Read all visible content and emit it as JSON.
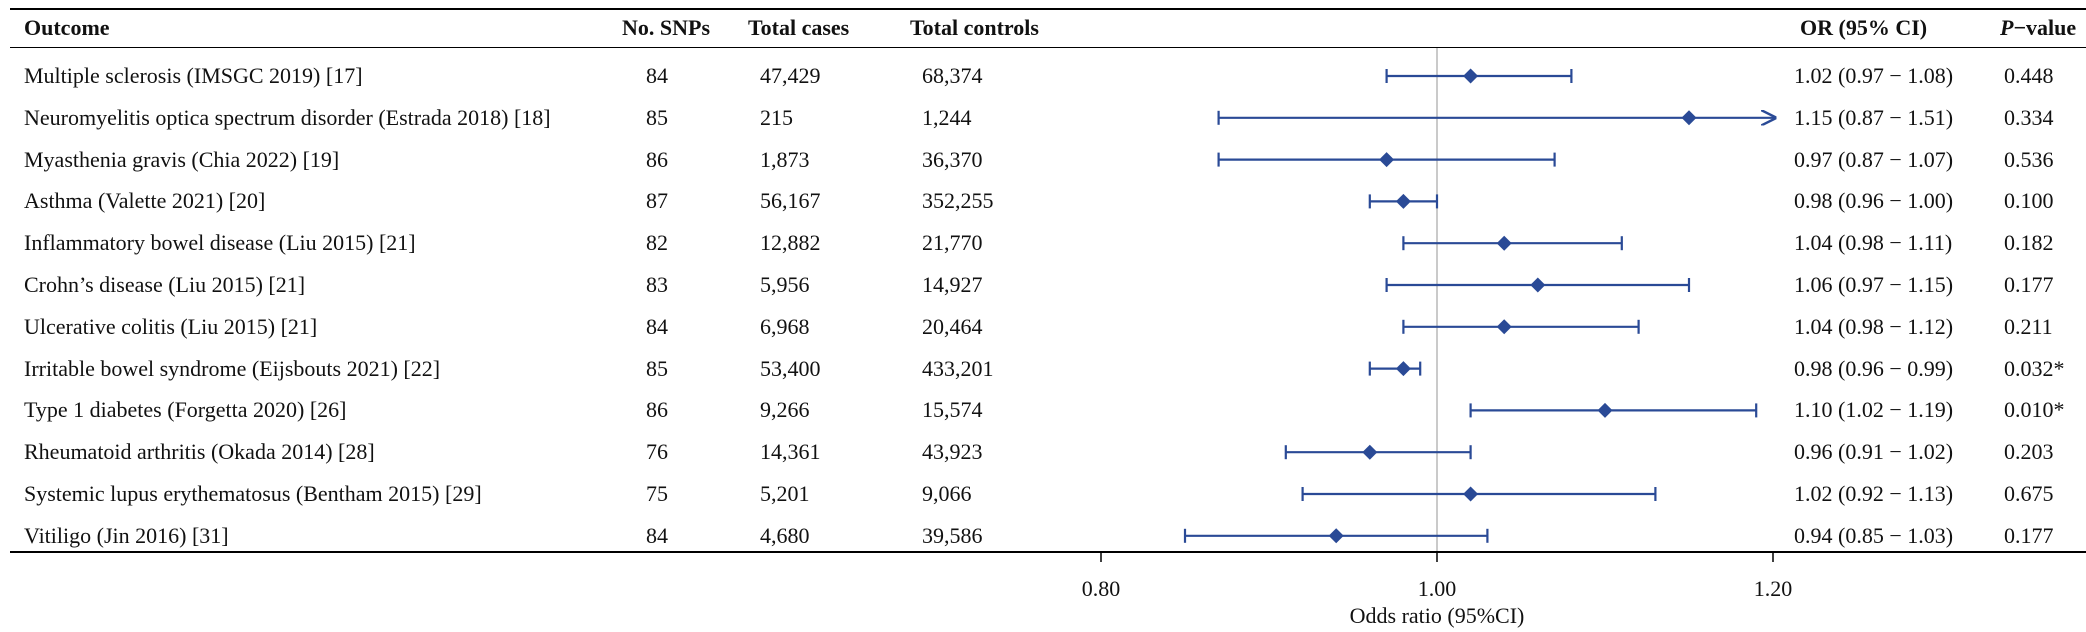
{
  "headers": {
    "outcome": "Outcome",
    "snps": "No. SNPs",
    "cases": "Total cases",
    "controls": "Total controls",
    "or": "OR (95% CI)",
    "p_italic": "P",
    "p_rest": "−value"
  },
  "rows": [
    {
      "outcome": "Multiple sclerosis (IMSGC 2019) [17]",
      "snps": "84",
      "cases": "47,429",
      "controls": "68,374",
      "or_text": "1.02 (0.97 − 1.08)",
      "p": "0.448"
    },
    {
      "outcome": "Neuromyelitis optica spectrum disorder (Estrada 2018) [18]",
      "snps": "85",
      "cases": "215",
      "controls": "1,244",
      "or_text": "1.15 (0.87 − 1.51)",
      "p": "0.334"
    },
    {
      "outcome": "Myasthenia gravis (Chia 2022) [19]",
      "snps": "86",
      "cases": "1,873",
      "controls": "36,370",
      "or_text": "0.97 (0.87 − 1.07)",
      "p": "0.536"
    },
    {
      "outcome": "Asthma (Valette 2021) [20]",
      "snps": "87",
      "cases": "56,167",
      "controls": "352,255",
      "or_text": "0.98 (0.96 − 1.00)",
      "p": "0.100"
    },
    {
      "outcome": "Inflammatory bowel disease (Liu 2015) [21]",
      "snps": "82",
      "cases": "12,882",
      "controls": "21,770",
      "or_text": "1.04 (0.98 − 1.11)",
      "p": "0.182"
    },
    {
      "outcome": "Crohn’s disease (Liu 2015) [21]",
      "snps": "83",
      "cases": "5,956",
      "controls": "14,927",
      "or_text": "1.06 (0.97 − 1.15)",
      "p": "0.177"
    },
    {
      "outcome": "Ulcerative colitis (Liu 2015) [21]",
      "snps": "84",
      "cases": "6,968",
      "controls": "20,464",
      "or_text": "1.04 (0.98 − 1.12)",
      "p": "0.211"
    },
    {
      "outcome": "Irritable bowel syndrome (Eijsbouts 2021) [22]",
      "snps": "85",
      "cases": "53,400",
      "controls": "433,201",
      "or_text": "0.98 (0.96 − 0.99)",
      "p": "0.032*"
    },
    {
      "outcome": "Type 1 diabetes (Forgetta 2020) [26]",
      "snps": "86",
      "cases": "9,266",
      "controls": "15,574",
      "or_text": "1.10 (1.02 − 1.19)",
      "p": "0.010*"
    },
    {
      "outcome": "Rheumatoid arthritis (Okada 2014) [28]",
      "snps": "76",
      "cases": "14,361",
      "controls": "43,923",
      "or_text": "0.96 (0.91 − 1.02)",
      "p": "0.203"
    },
    {
      "outcome": "Systemic lupus erythematosus (Bentham 2015) [29]",
      "snps": "75",
      "cases": "5,201",
      "controls": "9,066",
      "or_text": "1.02 (0.92 − 1.13)",
      "p": "0.675"
    },
    {
      "outcome": "Vitiligo (Jin 2016) [31]",
      "snps": "84",
      "cases": "4,680",
      "controls": "39,586",
      "or_text": "0.94 (0.85 − 1.03)",
      "p": "0.177"
    }
  ],
  "chart_data": {
    "type": "forest",
    "xlabel": "Odds ratio (95%CI)",
    "xlim": [
      0.8,
      1.2
    ],
    "xticks": [
      0.8,
      1.0,
      1.2
    ],
    "xtick_labels": [
      "0.80",
      "1.00",
      "1.20"
    ],
    "reference_line": 1.0,
    "color": "#2a4a96",
    "series": [
      {
        "name": "Multiple sclerosis (IMSGC 2019) [17]",
        "or": 1.02,
        "lower": 0.97,
        "upper": 1.08
      },
      {
        "name": "Neuromyelitis optica spectrum disorder (Estrada 2018) [18]",
        "or": 1.15,
        "lower": 0.87,
        "upper": 1.51
      },
      {
        "name": "Myasthenia gravis (Chia 2022) [19]",
        "or": 0.97,
        "lower": 0.87,
        "upper": 1.07
      },
      {
        "name": "Asthma (Valette 2021) [20]",
        "or": 0.98,
        "lower": 0.96,
        "upper": 1.0
      },
      {
        "name": "Inflammatory bowel disease (Liu 2015) [21]",
        "or": 1.04,
        "lower": 0.98,
        "upper": 1.11
      },
      {
        "name": "Crohn’s disease (Liu 2015) [21]",
        "or": 1.06,
        "lower": 0.97,
        "upper": 1.15
      },
      {
        "name": "Ulcerative colitis (Liu 2015) [21]",
        "or": 1.04,
        "lower": 0.98,
        "upper": 1.12
      },
      {
        "name": "Irritable bowel syndrome (Eijsbouts 2021) [22]",
        "or": 0.98,
        "lower": 0.96,
        "upper": 0.99
      },
      {
        "name": "Type 1 diabetes (Forgetta 2020) [26]",
        "or": 1.1,
        "lower": 1.02,
        "upper": 1.19
      },
      {
        "name": "Rheumatoid arthritis (Okada 2014) [28]",
        "or": 0.96,
        "lower": 0.91,
        "upper": 1.02
      },
      {
        "name": "Systemic lupus erythematosus (Bentham 2015) [29]",
        "or": 1.02,
        "lower": 0.92,
        "upper": 1.13
      },
      {
        "name": "Vitiligo (Jin 2016) [31]",
        "or": 0.94,
        "lower": 0.85,
        "upper": 1.03
      }
    ]
  }
}
